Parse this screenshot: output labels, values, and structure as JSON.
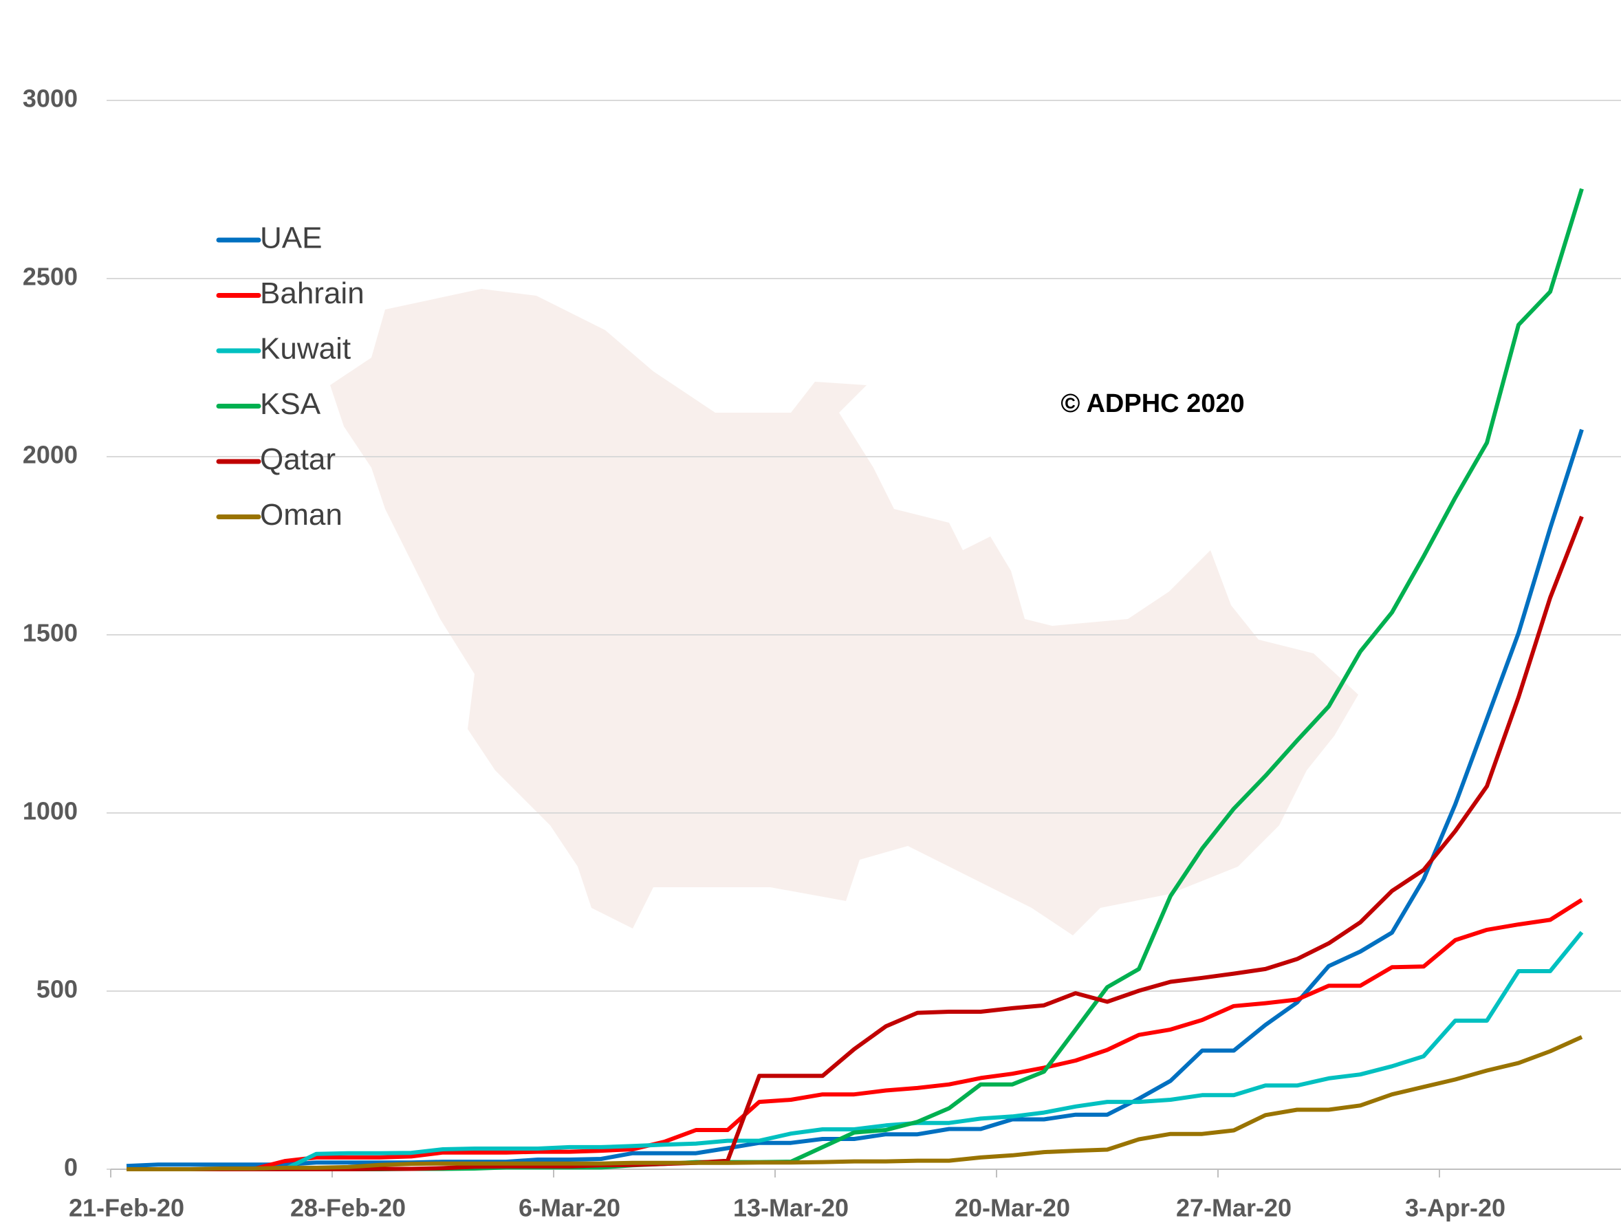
{
  "chart_data": {
    "type": "line",
    "annotations": [
      "© ADPHC 2020"
    ],
    "categories": [
      "21-Feb-20",
      null,
      null,
      null,
      null,
      null,
      null,
      "28-Feb-20",
      null,
      null,
      null,
      null,
      null,
      null,
      "6-Mar-20",
      null,
      null,
      null,
      null,
      null,
      null,
      "13-Mar-20",
      null,
      null,
      null,
      null,
      null,
      null,
      "20-Mar-20",
      null,
      null,
      null,
      null,
      null,
      null,
      "27-Mar-20",
      null,
      null,
      null,
      null,
      null,
      null,
      "3-Apr-20",
      null,
      null,
      null,
      null
    ],
    "ylim": [
      0,
      3000
    ],
    "yticks": [
      0,
      500,
      1000,
      1500,
      2000,
      2500,
      3000
    ],
    "grid": true,
    "legend": "upper left",
    "series": [
      {
        "name": "UAE",
        "color": "#0070c0",
        "values": [
          9,
          13,
          13,
          13,
          13,
          13,
          19,
          19,
          19,
          19,
          21,
          21,
          21,
          27,
          27,
          29,
          45,
          45,
          45,
          59,
          74,
          74,
          85,
          85,
          98,
          98,
          113,
          113,
          140,
          140,
          153,
          153,
          198,
          248,
          333,
          333,
          405,
          468,
          570,
          611,
          664,
          814,
          1024,
          1264,
          1505,
          1799,
          2076
        ]
      },
      {
        "name": "Bahrain",
        "color": "#ff0000",
        "values": [
          0,
          0,
          0,
          0,
          0,
          23,
          33,
          33,
          33,
          36,
          47,
          47,
          47,
          49,
          49,
          52,
          56,
          77,
          110,
          110,
          189,
          195,
          210,
          210,
          221,
          228,
          238,
          256,
          268,
          285,
          305,
          335,
          377,
          392,
          419,
          458,
          466,
          476,
          515,
          515,
          567,
          569,
          643,
          672,
          687,
          700,
          756
        ]
      },
      {
        "name": "Kuwait",
        "color": "#00c0c0",
        "values": [
          0,
          0,
          0,
          0,
          0,
          0,
          43,
          45,
          45,
          46,
          56,
          58,
          58,
          58,
          62,
          62,
          65,
          69,
          72,
          80,
          80,
          100,
          112,
          112,
          123,
          130,
          130,
          142,
          148,
          159,
          176,
          189,
          189,
          195,
          208,
          208,
          235,
          235,
          255,
          266,
          289,
          317,
          417,
          417,
          556,
          556,
          665
        ]
      },
      {
        "name": "KSA",
        "color": "#00b050",
        "values": [
          0,
          0,
          0,
          0,
          0,
          0,
          0,
          0,
          0,
          1,
          1,
          2,
          5,
          5,
          5,
          5,
          11,
          15,
          20,
          20,
          20,
          21,
          62,
          103,
          110,
          133,
          171,
          238,
          238,
          274,
          392,
          511,
          562,
          767,
          900,
          1012,
          1104,
          1203,
          1299,
          1453,
          1563,
          1720,
          1885,
          2039,
          2370,
          2463,
          2752
        ]
      },
      {
        "name": "Qatar",
        "color": "#c00000",
        "values": [
          0,
          0,
          0,
          0,
          0,
          0,
          0,
          0,
          1,
          1,
          3,
          7,
          8,
          8,
          8,
          11,
          12,
          15,
          18,
          24,
          262,
          262,
          262,
          337,
          401,
          439,
          442,
          442,
          452,
          460,
          494,
          470,
          501,
          526,
          537,
          549,
          562,
          590,
          634,
          693,
          781,
          840,
          949,
          1075,
          1325,
          1604,
          1832
        ]
      },
      {
        "name": "Oman",
        "color": "#997300",
        "values": [
          0,
          0,
          0,
          2,
          2,
          4,
          4,
          6,
          12,
          15,
          16,
          16,
          16,
          16,
          16,
          16,
          18,
          18,
          18,
          18,
          19,
          19,
          20,
          22,
          22,
          24,
          24,
          33,
          39,
          48,
          52,
          55,
          84,
          99,
          99,
          109,
          152,
          167,
          167,
          179,
          210,
          231,
          252,
          277,
          298,
          331,
          371
        ]
      }
    ]
  }
}
